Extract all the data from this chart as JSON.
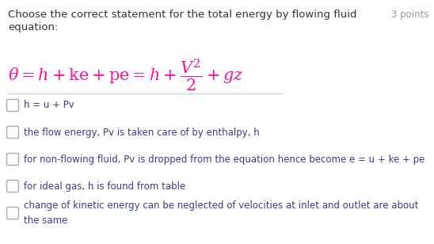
{
  "background_color": "#ffffff",
  "title_text": "Choose the correct statement for the total energy by flowing fluid",
  "points_text": "3 points",
  "subtitle_text": "equation:",
  "title_color": "#333333",
  "points_color": "#999999",
  "magenta_color": "#ff1199",
  "option_color": "#3c3c8c",
  "checkbox_color": "#aaaaaa",
  "options": [
    "h = u + Pv",
    "the flow energy, Pv is taken care of by enthalpy, h",
    "for non-flowing fluid, Pv is dropped from the equation hence become e = u + ke + pe",
    "for ideal gas, h is found from table",
    "change of kinetic energy can be neglected of velocities at inlet and outlet are about\nthe same"
  ],
  "font_size_title": 9.5,
  "font_size_options": 8.5,
  "font_size_equation": 15,
  "font_size_points": 8.5,
  "fig_width": 5.48,
  "fig_height": 3.08,
  "dpi": 100
}
